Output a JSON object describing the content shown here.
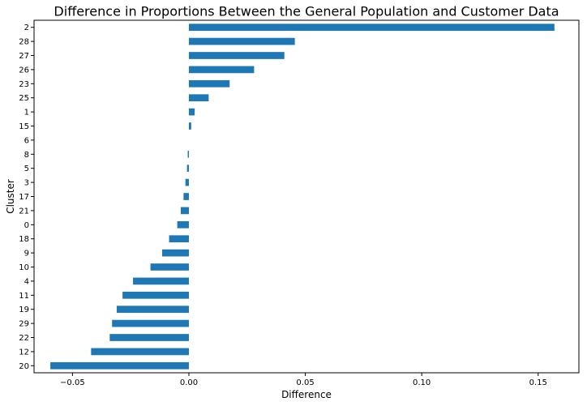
{
  "chart_data": {
    "type": "bar",
    "orientation": "horizontal",
    "title": "Difference in Proportions Between the General Population and Customer Data",
    "xlabel": "Difference",
    "ylabel": "Cluster",
    "xlim": [
      -0.0665,
      0.1675
    ],
    "xticks": [
      -0.05,
      0.0,
      0.05,
      0.1,
      0.15
    ],
    "xtick_labels": [
      "−0.05",
      "0.00",
      "0.05",
      "0.10",
      "0.15"
    ],
    "grid": false,
    "bar_color": "#1f77b4",
    "categories": [
      "2",
      "28",
      "27",
      "26",
      "23",
      "25",
      "1",
      "15",
      "6",
      "8",
      "5",
      "3",
      "17",
      "21",
      "0",
      "18",
      "9",
      "10",
      "4",
      "11",
      "19",
      "29",
      "22",
      "12",
      "20"
    ],
    "values": [
      0.157,
      0.0455,
      0.041,
      0.028,
      0.0175,
      0.0085,
      0.0025,
      0.001,
      0.0,
      -0.0005,
      -0.0008,
      -0.0015,
      -0.0023,
      -0.0035,
      -0.005,
      -0.0085,
      -0.0115,
      -0.0165,
      -0.024,
      -0.0285,
      -0.031,
      -0.033,
      -0.034,
      -0.042,
      -0.0595
    ]
  }
}
